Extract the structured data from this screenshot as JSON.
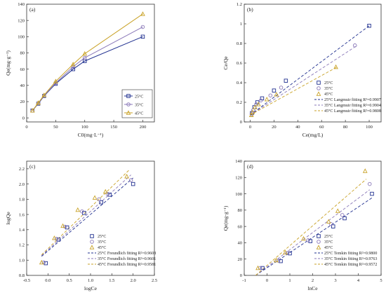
{
  "colors": {
    "c25": "#1f2f8f",
    "c35": "#8a78b8",
    "c45": "#c9a227"
  },
  "chart_data": [
    {
      "type": "line",
      "panel_label": "(a)",
      "xlabel": "C0(mg·L⁻¹)",
      "ylabel": "Qe(mg·g⁻¹)",
      "xlim": [
        0,
        220
      ],
      "ylim": [
        -5,
        140
      ],
      "xticks": [
        0,
        50,
        100,
        150,
        200
      ],
      "yticks": [
        0,
        20,
        40,
        60,
        80,
        100,
        120,
        140
      ],
      "legend_position": "bottom-right",
      "series": [
        {
          "name": "25°C",
          "marker": "square",
          "x": [
            10,
            20,
            30,
            50,
            80,
            100,
            200
          ],
          "y": [
            9,
            17.5,
            27,
            42,
            60,
            70,
            100
          ]
        },
        {
          "name": "35°C",
          "marker": "circle",
          "x": [
            10,
            20,
            30,
            50,
            80,
            100,
            200
          ],
          "y": [
            9,
            18,
            27.5,
            43,
            63,
            74,
            112
          ]
        },
        {
          "name": "45°C",
          "marker": "triangle",
          "x": [
            10,
            20,
            30,
            50,
            80,
            100,
            200
          ],
          "y": [
            9,
            18.5,
            28,
            45,
            66,
            79,
            128
          ]
        }
      ]
    },
    {
      "type": "scatter",
      "panel_label": "(b)",
      "xlabel": "Ce(mg/L)",
      "ylabel": "Ce/Qe",
      "xlim": [
        -5,
        110
      ],
      "ylim": [
        0,
        1.2
      ],
      "xticks": [
        0,
        20,
        40,
        60,
        80,
        100
      ],
      "yticks": [
        0.0,
        0.2,
        0.4,
        0.6,
        0.8,
        1.0,
        1.2
      ],
      "legend_position": "bottom-right",
      "series": [
        {
          "name": "25°C",
          "marker": "square",
          "x": [
            1.5,
            3.5,
            6,
            10,
            20,
            30,
            100
          ],
          "y": [
            0.09,
            0.15,
            0.2,
            0.24,
            0.32,
            0.42,
            0.98
          ]
        },
        {
          "name": "35°C",
          "marker": "circle",
          "x": [
            1.2,
            2.5,
            5,
            9,
            17,
            26,
            88
          ],
          "y": [
            0.08,
            0.12,
            0.18,
            0.22,
            0.27,
            0.35,
            0.78
          ]
        },
        {
          "name": "45°C",
          "marker": "triangle",
          "x": [
            1,
            2,
            4,
            7,
            14,
            22,
            72
          ],
          "y": [
            0.07,
            0.1,
            0.15,
            0.18,
            0.23,
            0.28,
            0.56
          ]
        }
      ],
      "fits": [
        {
          "name": "25°C Langmuir fitting R²=0.9907",
          "x": [
            0,
            100
          ],
          "y": [
            0.07,
            0.98
          ]
        },
        {
          "name": "35°C Langmuir fitting R²=0.9904",
          "x": [
            0,
            90
          ],
          "y": [
            0.07,
            0.78
          ]
        },
        {
          "name": "45°C Langmuir fitting R²=0.9808",
          "x": [
            0,
            73
          ],
          "y": [
            0.07,
            0.56
          ]
        }
      ]
    },
    {
      "type": "scatter",
      "panel_label": "(c)",
      "xlabel": "logCe",
      "ylabel": "logQe",
      "xlim": [
        -0.5,
        2.5
      ],
      "ylim": [
        0.8,
        2.3
      ],
      "xticks": [
        -0.5,
        0.0,
        0.5,
        1.0,
        1.5,
        2.0,
        2.5
      ],
      "xtick_labels": [
        "-0.5",
        "0.0",
        "0.5",
        "1.0",
        "1.5",
        "2.0",
        "2.5"
      ],
      "yticks": [
        0.8,
        1.0,
        1.2,
        1.4,
        1.6,
        1.8,
        2.0,
        2.2
      ],
      "ytick_labels": [
        "0.8",
        "1.0",
        "1.2",
        "1.4",
        "1.6",
        "1.8",
        "2.0",
        "2.2"
      ],
      "legend_position": "bottom-right",
      "series": [
        {
          "name": "25°C",
          "marker": "square",
          "x": [
            -0.05,
            0.25,
            0.45,
            0.85,
            1.25,
            1.45,
            2.0
          ],
          "y": [
            0.96,
            1.27,
            1.43,
            1.62,
            1.76,
            1.86,
            2.0
          ]
        },
        {
          "name": "35°C",
          "marker": "circle",
          "x": [
            -0.1,
            0.2,
            0.4,
            0.8,
            1.2,
            1.4,
            1.95
          ],
          "y": [
            0.97,
            1.28,
            1.44,
            1.64,
            1.8,
            1.87,
            2.05
          ]
        },
        {
          "name": "45°C",
          "marker": "triangle",
          "x": [
            -0.15,
            0.15,
            0.35,
            0.7,
            1.1,
            1.35,
            1.85
          ],
          "y": [
            0.97,
            1.29,
            1.45,
            1.66,
            1.82,
            1.9,
            2.1
          ]
        }
      ],
      "fits": [
        {
          "name": "25°C Freundlich fitting R²=0.9608",
          "x": [
            -0.15,
            2.0
          ],
          "y": [
            1.05,
            2.08
          ]
        },
        {
          "name": "35°C Freundlich fitting R²=0.9601",
          "x": [
            -0.15,
            1.95
          ],
          "y": [
            1.06,
            2.12
          ]
        },
        {
          "name": "45°C Freundlich fitting R²=0.9581",
          "x": [
            -0.15,
            1.9
          ],
          "y": [
            1.07,
            2.18
          ]
        }
      ]
    },
    {
      "type": "scatter",
      "panel_label": "(d)",
      "xlabel": "lnCe",
      "ylabel": "Qe(mg·g⁻¹)",
      "xlim": [
        -1,
        5
      ],
      "ylim": [
        0,
        140
      ],
      "xticks": [
        -1,
        0,
        1,
        2,
        3,
        4,
        5
      ],
      "yticks": [
        0,
        20,
        40,
        60,
        80,
        100,
        120,
        140
      ],
      "legend_position": "bottom-right",
      "series": [
        {
          "name": "25°C",
          "marker": "square",
          "x": [
            -0.2,
            0.6,
            1.0,
            1.9,
            2.9,
            3.4,
            4.6
          ],
          "y": [
            9,
            17.5,
            27,
            42,
            60,
            70,
            100
          ]
        },
        {
          "name": "35°C",
          "marker": "circle",
          "x": [
            -0.3,
            0.5,
            0.9,
            1.8,
            2.8,
            3.3,
            4.5
          ],
          "y": [
            9,
            18,
            27.5,
            43,
            63,
            74,
            112
          ]
        },
        {
          "name": "45°C",
          "marker": "triangle",
          "x": [
            -0.4,
            0.4,
            0.8,
            1.6,
            2.7,
            3.1,
            4.3
          ],
          "y": [
            9,
            18.5,
            28,
            45,
            66,
            79,
            128
          ]
        }
      ],
      "fits": [
        {
          "name": "25°C Temkin fitting R²=0.9800",
          "x": [
            -0.5,
            4.6
          ],
          "y": [
            0,
            95
          ]
        },
        {
          "name": "35°C Temkin fitting R²=0.9763",
          "x": [
            -0.5,
            4.5
          ],
          "y": [
            0,
            105
          ]
        },
        {
          "name": "45°C Temkin fitting R²=0.9572",
          "x": [
            -0.5,
            4.35
          ],
          "y": [
            0,
            118
          ]
        }
      ]
    }
  ]
}
